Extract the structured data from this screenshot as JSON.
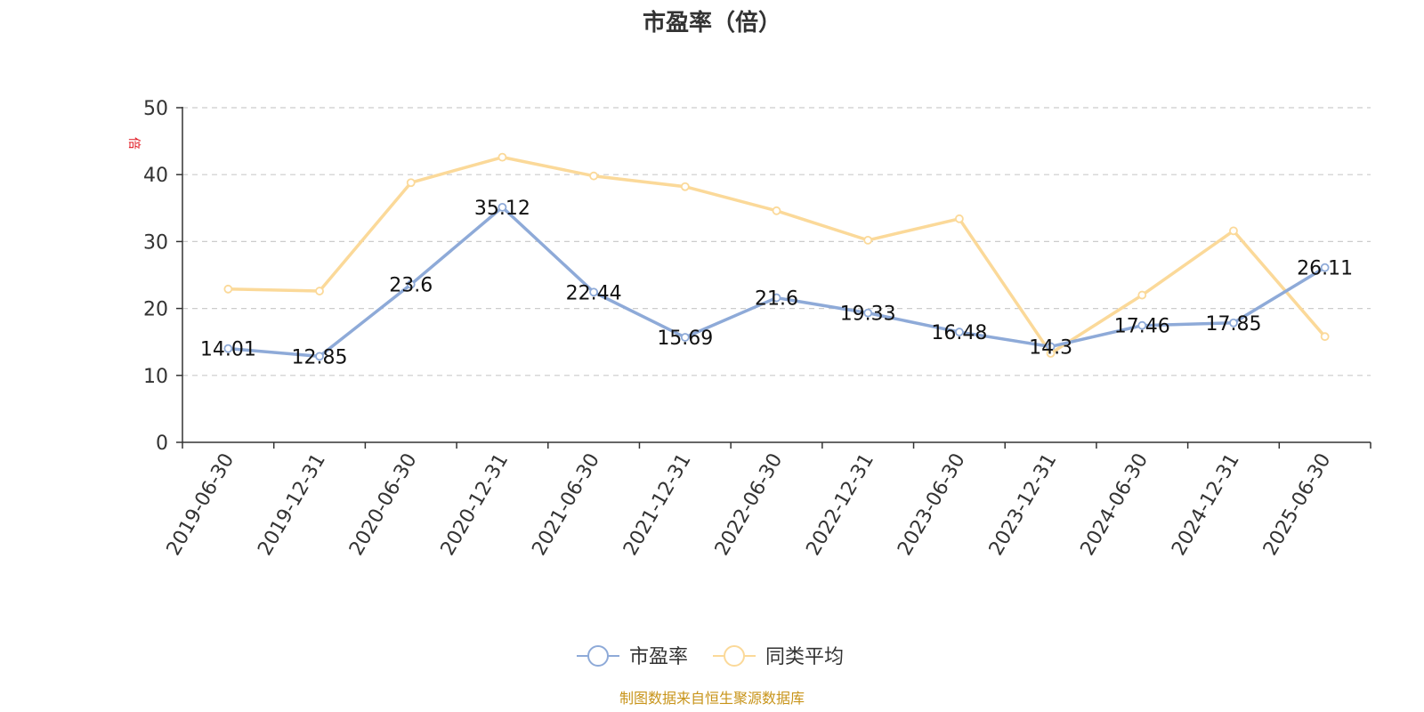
{
  "chart_data": {
    "type": "line",
    "title": "市盈率（倍）",
    "ylabel": "倍",
    "xlabel": "",
    "ylim": [
      0,
      50
    ],
    "yticks": [
      0,
      10,
      20,
      30,
      40,
      50
    ],
    "grid": "horizontal dashed",
    "legend_position": "bottom-center",
    "categories": [
      "2019-06-30",
      "2019-12-31",
      "2020-06-30",
      "2020-12-31",
      "2021-06-30",
      "2021-12-31",
      "2022-06-30",
      "2022-12-31",
      "2023-06-30",
      "2023-12-31",
      "2024-06-30",
      "2024-12-31",
      "2025-06-30"
    ],
    "series": [
      {
        "name": "市盈率",
        "color": "#8eaad8",
        "labeled": true,
        "values": [
          14.01,
          12.85,
          23.6,
          35.12,
          22.44,
          15.69,
          21.6,
          19.33,
          16.48,
          14.3,
          17.46,
          17.85,
          26.11
        ],
        "labels": [
          "14.01",
          "12.85",
          "23.6",
          "35.12",
          "22.44",
          "15.69",
          "21.6",
          "19.33",
          "16.48",
          "14.3",
          "17.46",
          "17.85",
          "26.11"
        ]
      },
      {
        "name": "同类平均",
        "color": "#fbd999",
        "labeled": false,
        "values": [
          22.9,
          22.6,
          38.8,
          42.6,
          39.8,
          38.2,
          34.6,
          30.2,
          33.4,
          13.3,
          22.0,
          31.6,
          15.8
        ]
      }
    ],
    "source": "制图数据来自恒生聚源数据库"
  }
}
